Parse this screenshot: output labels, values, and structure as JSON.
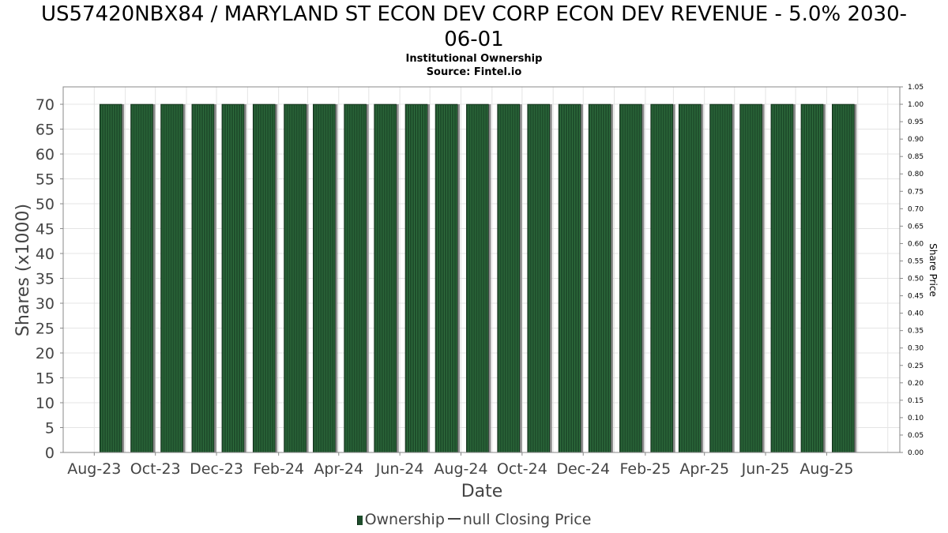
{
  "header": {
    "title_line1": "US57420NBX84 / MARYLAND ST ECON DEV CORP ECON DEV REVENUE - 5.0% 2030-",
    "title_line2": "06-01",
    "subtitle": "Institutional Ownership",
    "source": "Source: Fintel.io"
  },
  "legend": {
    "ownership_label": "Ownership",
    "price_label": "null Closing Price"
  },
  "colors": {
    "bar_fill": "#1e4d2b",
    "bar_stripe": "#2f6e3e",
    "bar_shadow": "#8c8c8c",
    "grid": "#e4e4e4",
    "axis_text": "#444444"
  },
  "chart_data": {
    "type": "bar",
    "xlabel": "Date",
    "ylabel": "Shares (x1000)",
    "y2label": "Share Price",
    "ylim": [
      0,
      73.5
    ],
    "y_ticks": [
      "0",
      "5",
      "10",
      "15",
      "20",
      "25",
      "30",
      "35",
      "40",
      "45",
      "50",
      "55",
      "60",
      "65",
      "70"
    ],
    "y2lim": [
      0,
      1.05
    ],
    "y2_ticks": [
      "0.00",
      "0.05",
      "0.10",
      "0.15",
      "0.20",
      "0.25",
      "0.30",
      "0.35",
      "0.40",
      "0.45",
      "0.50",
      "0.55",
      "0.60",
      "0.65",
      "0.70",
      "0.75",
      "0.80",
      "0.85",
      "0.90",
      "0.95",
      "1.00",
      "1.05"
    ],
    "x_tick_labels": [
      "Aug-23",
      "Oct-23",
      "Dec-23",
      "Feb-24",
      "Apr-24",
      "Jun-24",
      "Aug-24",
      "Oct-24",
      "Dec-24",
      "Feb-25",
      "Apr-25",
      "Jun-25",
      "Aug-25"
    ],
    "x_start": "2023-07-01",
    "x_end": "2025-10-13",
    "grid": true,
    "legend_position": "bottom",
    "series": [
      {
        "name": "Ownership",
        "type": "bar",
        "x": [
          "2023-08-08",
          "2023-09-08",
          "2023-10-08",
          "2023-11-08",
          "2023-12-08",
          "2024-01-08",
          "2024-02-08",
          "2024-03-08",
          "2024-04-08",
          "2024-05-08",
          "2024-06-08",
          "2024-07-08",
          "2024-08-08",
          "2024-09-08",
          "2024-10-08",
          "2024-11-08",
          "2024-12-08",
          "2025-01-08",
          "2025-02-08",
          "2025-03-08",
          "2025-04-08",
          "2025-05-08",
          "2025-06-08",
          "2025-07-08",
          "2025-08-08"
        ],
        "values": [
          70,
          70,
          70,
          70,
          70,
          70,
          70,
          70,
          70,
          70,
          70,
          70,
          70,
          70,
          70,
          70,
          70,
          70,
          70,
          70,
          70,
          70,
          70,
          70,
          70
        ]
      },
      {
        "name": "null Closing Price",
        "type": "line",
        "x": [],
        "values": []
      }
    ]
  }
}
